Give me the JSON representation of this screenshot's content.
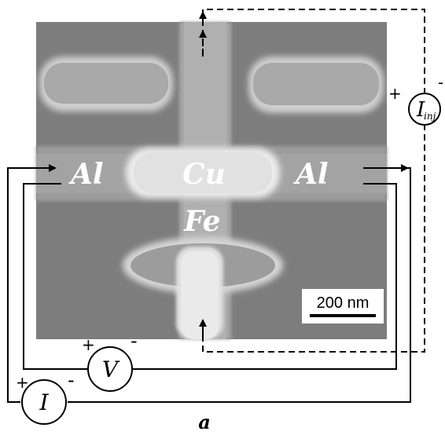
{
  "labels": {
    "al_left": "Al",
    "al_right": "Al",
    "cu": "Cu",
    "fe": "Fe"
  },
  "meters": {
    "voltage": {
      "symbol": "V",
      "plus": "+",
      "minus": "-"
    },
    "current": {
      "symbol": "I",
      "plus": "+",
      "minus": "-"
    },
    "injection": {
      "symbol": "I",
      "subscript": "inj",
      "plus": "+",
      "minus": "-"
    }
  },
  "scale_bar": {
    "label": "200 nm"
  },
  "panel_label": "a",
  "colors": {
    "background_sem": "#7f7f7f",
    "wire": "#000000"
  }
}
